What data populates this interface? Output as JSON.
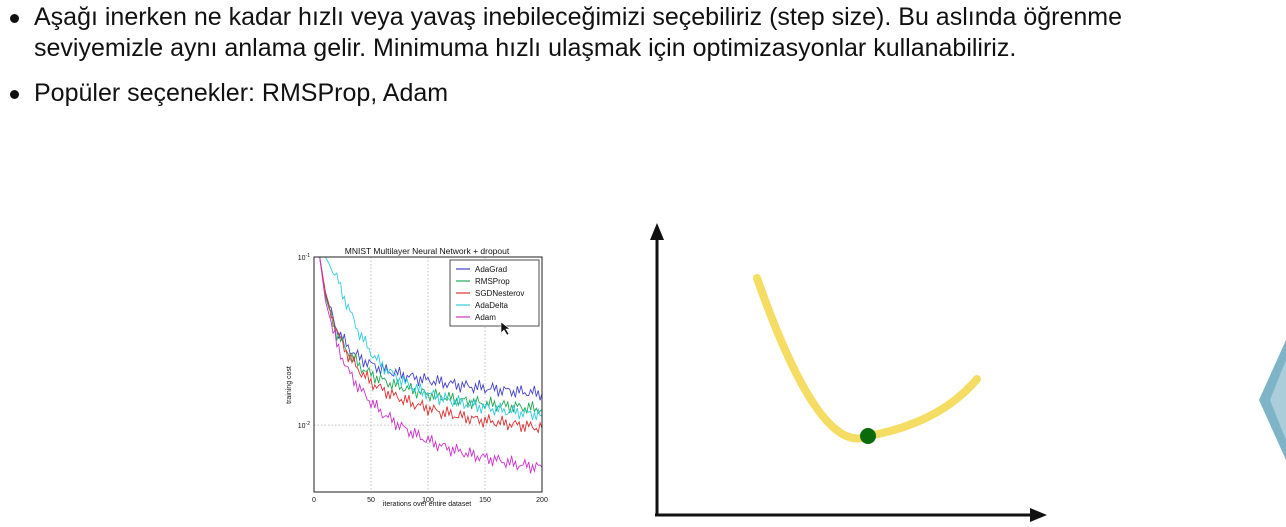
{
  "bullets": [
    {
      "text": "Aşağı inerken ne kadar hızlı veya yavaş inebileceğimizi seçebiliriz (step size). Bu aslında öğrenme\nseviyemizle aynı anlama gelir. Minimuma hızlı ulaşmak için optimizasyonlar kullanabiliriz."
    },
    {
      "text": "Popüler seçenekler: RMSProp, Adam"
    }
  ],
  "chart_data": {
    "type": "line",
    "title": "MNIST Multilayer Neural Network + dropout",
    "xlabel": "iterations over entire dataset",
    "ylabel": "training cost",
    "xlim": [
      0,
      200
    ],
    "y_scale": "log",
    "ylim": [
      0.004,
      0.1
    ],
    "x_ticks": [
      "0",
      "50",
      "100",
      "150",
      "200"
    ],
    "y_ticks": [
      {
        "base": "10",
        "exp": "-1",
        "value": 0.1
      },
      {
        "base": "10",
        "exp": "-2",
        "value": 0.01
      }
    ],
    "grid": true,
    "legend_position": "top-right",
    "x": [
      5,
      10,
      20,
      30,
      40,
      50,
      60,
      70,
      80,
      90,
      100,
      110,
      120,
      130,
      140,
      150,
      160,
      170,
      180,
      190,
      200
    ],
    "series": [
      {
        "name": "AdaGrad",
        "color": "#4444cc",
        "values": [
          0.1,
          0.06,
          0.037,
          0.029,
          0.025,
          0.023,
          0.0215,
          0.0205,
          0.0197,
          0.019,
          0.0185,
          0.018,
          0.0176,
          0.0172,
          0.0169,
          0.0166,
          0.0163,
          0.016,
          0.0158,
          0.0156,
          0.0154
        ]
      },
      {
        "name": "RMSProp",
        "color": "#22aa55",
        "values": [
          0.1,
          0.058,
          0.035,
          0.027,
          0.0225,
          0.02,
          0.0185,
          0.0174,
          0.0166,
          0.0159,
          0.0153,
          0.0148,
          0.0144,
          0.014,
          0.0137,
          0.0134,
          0.0132,
          0.013,
          0.0128,
          0.0126,
          0.0124
        ]
      },
      {
        "name": "SGDNesterov",
        "color": "#dd3333",
        "values": [
          0.1,
          0.062,
          0.036,
          0.026,
          0.021,
          0.018,
          0.0162,
          0.015,
          0.014,
          0.0132,
          0.0126,
          0.012,
          0.0116,
          0.0112,
          0.0109,
          0.0106,
          0.0104,
          0.0102,
          0.01,
          0.0098,
          0.0096
        ]
      },
      {
        "name": "AdaDelta",
        "color": "#33ccdd",
        "values": [
          0.1,
          0.1,
          0.075,
          0.05,
          0.035,
          0.027,
          0.0225,
          0.0198,
          0.0178,
          0.0164,
          0.0154,
          0.0146,
          0.014,
          0.0135,
          0.0131,
          0.0127,
          0.0124,
          0.0121,
          0.0119,
          0.0117,
          0.0115
        ]
      },
      {
        "name": "Adam",
        "color": "#cc33cc",
        "values": [
          0.1,
          0.055,
          0.03,
          0.021,
          0.0165,
          0.0137,
          0.0118,
          0.0105,
          0.0095,
          0.0087,
          0.0081,
          0.0076,
          0.0072,
          0.0069,
          0.0066,
          0.0064,
          0.0062,
          0.006,
          0.0058,
          0.0057,
          0.0056
        ]
      }
    ]
  },
  "illustration": {
    "curve_color": "#f5dc62",
    "point_color": "#0b6b0b",
    "axis_color": "#111111",
    "side_shape_color": "#7fb3c7"
  }
}
